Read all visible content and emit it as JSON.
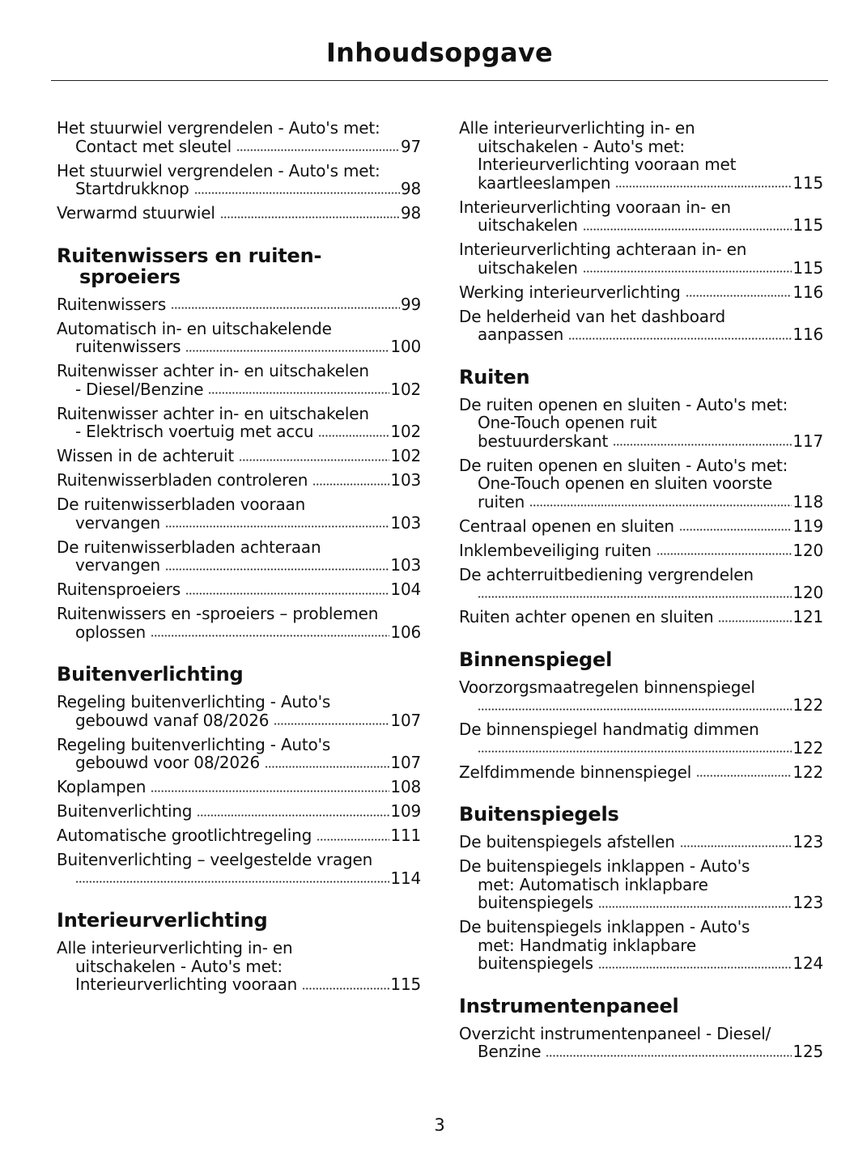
{
  "title": "Inhoudsopgave",
  "page_number": "3",
  "columns": [
    {
      "blocks": [
        {
          "type": "entry",
          "lines": [
            "Het stuurwiel vergrendelen - Auto's met:",
            "Contact met sleutel"
          ],
          "page": "97"
        },
        {
          "type": "entry",
          "lines": [
            "Het stuurwiel vergrendelen - Auto's met:",
            "Startdrukknop"
          ],
          "page": "98"
        },
        {
          "type": "entry",
          "lines": [
            "Verwarmd stuurwiel"
          ],
          "page": "98"
        },
        {
          "type": "heading",
          "lines": [
            "Ruitenwissers en ruiten-",
            "sproeiers"
          ]
        },
        {
          "type": "entry",
          "lines": [
            "Ruitenwissers"
          ],
          "page": "99"
        },
        {
          "type": "entry",
          "lines": [
            "Automatisch in- en uitschakelende",
            "ruitenwissers"
          ],
          "page": "100"
        },
        {
          "type": "entry",
          "lines": [
            "Ruitenwisser achter in- en uitschakelen",
            "- Diesel/Benzine"
          ],
          "page": "102"
        },
        {
          "type": "entry",
          "lines": [
            "Ruitenwisser achter in- en uitschakelen",
            "- Elektrisch voertuig met accu"
          ],
          "page": "102"
        },
        {
          "type": "entry",
          "lines": [
            "Wissen in de achteruit"
          ],
          "page": "102"
        },
        {
          "type": "entry",
          "lines": [
            "Ruitenwisserbladen controleren"
          ],
          "page": "103"
        },
        {
          "type": "entry",
          "lines": [
            "De ruitenwisserbladen vooraan",
            "vervangen"
          ],
          "page": "103"
        },
        {
          "type": "entry",
          "lines": [
            "De ruitenwisserbladen achteraan",
            "vervangen"
          ],
          "page": "103"
        },
        {
          "type": "entry",
          "lines": [
            "Ruitensproeiers"
          ],
          "page": "104"
        },
        {
          "type": "entry",
          "lines": [
            "Ruitenwissers en -sproeiers – problemen",
            "oplossen"
          ],
          "page": "106"
        },
        {
          "type": "heading",
          "lines": [
            "Buitenverlichting"
          ]
        },
        {
          "type": "entry",
          "lines": [
            "Regeling buitenverlichting - Auto's",
            "gebouwd vanaf 08/2026"
          ],
          "page": "107"
        },
        {
          "type": "entry",
          "lines": [
            "Regeling buitenverlichting - Auto's",
            "gebouwd voor 08/2026"
          ],
          "page": "107"
        },
        {
          "type": "entry",
          "lines": [
            "Koplampen"
          ],
          "page": "108"
        },
        {
          "type": "entry",
          "lines": [
            "Buitenverlichting"
          ],
          "page": "109"
        },
        {
          "type": "entry",
          "lines": [
            "Automatische grootlichtregeling"
          ],
          "page": "111"
        },
        {
          "type": "entry",
          "lines": [
            "Buitenverlichting – veelgestelde vragen",
            ""
          ],
          "page": "114"
        },
        {
          "type": "heading",
          "lines": [
            "Interieurverlichting"
          ]
        },
        {
          "type": "entry",
          "lines": [
            "Alle interieurverlichting in- en",
            "uitschakelen - Auto's met:",
            "Interieurverlichting vooraan"
          ],
          "page": "115"
        }
      ]
    },
    {
      "blocks": [
        {
          "type": "entry",
          "lines": [
            "Alle interieurverlichting in- en",
            "uitschakelen - Auto's met:",
            "Interieurverlichting vooraan met",
            "kaartleeslampen"
          ],
          "page": "115"
        },
        {
          "type": "entry",
          "lines": [
            "Interieurverlichting vooraan in- en",
            "uitschakelen"
          ],
          "page": "115"
        },
        {
          "type": "entry",
          "lines": [
            "Interieurverlichting achteraan in- en",
            "uitschakelen"
          ],
          "page": "115"
        },
        {
          "type": "entry",
          "lines": [
            "Werking interieurverlichting"
          ],
          "page": "116"
        },
        {
          "type": "entry",
          "lines": [
            "De helderheid van het dashboard",
            "aanpassen"
          ],
          "page": "116"
        },
        {
          "type": "heading",
          "lines": [
            "Ruiten"
          ]
        },
        {
          "type": "entry",
          "lines": [
            "De ruiten openen en sluiten - Auto's met:",
            "One-Touch openen ruit",
            "bestuurderskant"
          ],
          "page": "117"
        },
        {
          "type": "entry",
          "lines": [
            "De ruiten openen en sluiten - Auto's met:",
            "One-Touch openen en sluiten voorste",
            "ruiten"
          ],
          "page": "118"
        },
        {
          "type": "entry",
          "lines": [
            "Centraal openen en sluiten"
          ],
          "page": "119"
        },
        {
          "type": "entry",
          "lines": [
            "Inklembeveiliging ruiten"
          ],
          "page": "120"
        },
        {
          "type": "entry",
          "lines": [
            "De achterruitbediening vergrendelen",
            ""
          ],
          "page": "120"
        },
        {
          "type": "entry",
          "lines": [
            "Ruiten achter openen en sluiten"
          ],
          "page": "121"
        },
        {
          "type": "heading",
          "lines": [
            "Binnenspiegel"
          ]
        },
        {
          "type": "entry",
          "lines": [
            "Voorzorgsmaatregelen binnenspiegel",
            ""
          ],
          "page": "122"
        },
        {
          "type": "entry",
          "lines": [
            "De binnenspiegel handmatig dimmen",
            ""
          ],
          "page": "122"
        },
        {
          "type": "entry",
          "lines": [
            "Zelfdimmende binnenspiegel"
          ],
          "page": "122"
        },
        {
          "type": "heading",
          "lines": [
            "Buitenspiegels"
          ]
        },
        {
          "type": "entry",
          "lines": [
            "De buitenspiegels afstellen"
          ],
          "page": "123"
        },
        {
          "type": "entry",
          "lines": [
            "De buitenspiegels inklappen - Auto's",
            "met: Automatisch inklapbare",
            "buitenspiegels"
          ],
          "page": "123"
        },
        {
          "type": "entry",
          "lines": [
            "De buitenspiegels inklappen - Auto's",
            "met: Handmatig inklapbare",
            "buitenspiegels"
          ],
          "page": "124"
        },
        {
          "type": "heading",
          "lines": [
            "Instrumentenpaneel"
          ]
        },
        {
          "type": "entry",
          "lines": [
            "Overzicht instrumentenpaneel - Diesel/",
            "Benzine"
          ],
          "page": "125"
        }
      ]
    }
  ]
}
